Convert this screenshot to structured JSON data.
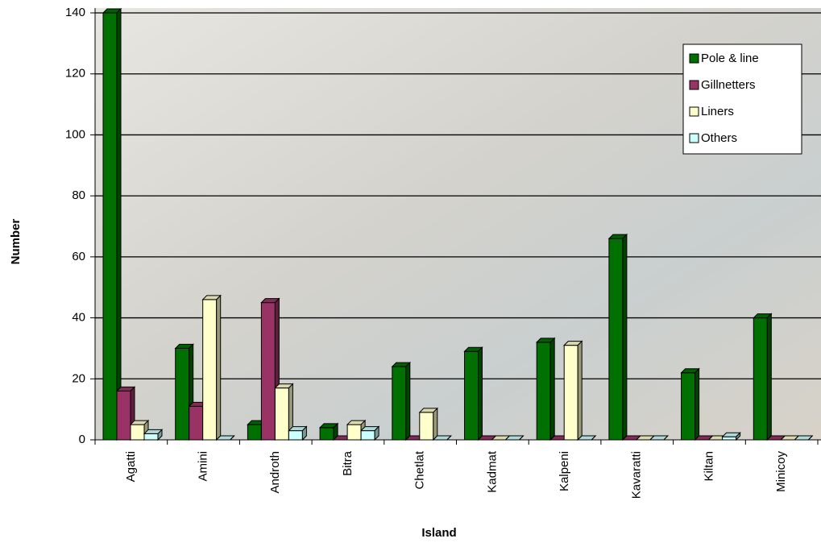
{
  "chart_data": {
    "type": "bar3d",
    "xlabel": "Island",
    "ylabel": "Number",
    "categories": [
      "Agatti",
      "Amini",
      "Androth",
      "Bitra",
      "Chetlat",
      "Kadmat",
      "Kalpeni",
      "Kavaratti",
      "Kiltan",
      "Minicoy"
    ],
    "series": [
      {
        "name": "Pole & line",
        "color": "#007000",
        "values": [
          140,
          30,
          5,
          4,
          24,
          29,
          32,
          66,
          22,
          40
        ]
      },
      {
        "name": "Gillnetters",
        "color": "#993366",
        "values": [
          16,
          11,
          45,
          0,
          0,
          0,
          0,
          0,
          0,
          0
        ]
      },
      {
        "name": "Liners",
        "color": "#ffffcc",
        "values": [
          5,
          46,
          17,
          5,
          9,
          0,
          31,
          0,
          0,
          0
        ]
      },
      {
        "name": "Others",
        "color": "#ccffff",
        "values": [
          2,
          0,
          3,
          3,
          0,
          0,
          0,
          0,
          1,
          0
        ]
      }
    ],
    "ylim": [
      0,
      140
    ],
    "yticks": [
      0,
      20,
      40,
      60,
      80,
      100,
      120,
      140
    ],
    "grid": true,
    "legend": "upper right"
  }
}
